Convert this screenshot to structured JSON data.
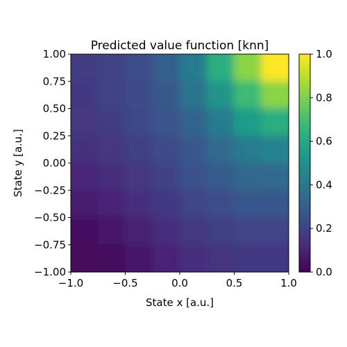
{
  "chart_data": {
    "type": "heatmap",
    "title": "Predicted value function [knn]",
    "xlabel": "State x [a.u.]",
    "ylabel": "State y [a.u.]",
    "xlim": [
      -1.0,
      1.0
    ],
    "ylim": [
      -1.0,
      1.0
    ],
    "x_ticks": [
      -1.0,
      -0.5,
      0.0,
      0.5,
      1.0
    ],
    "x_tick_labels": [
      "−1.0",
      "−0.5",
      "0.0",
      "0.5",
      "1.0"
    ],
    "y_ticks": [
      1.0,
      0.75,
      0.5,
      0.25,
      0.0,
      -0.25,
      -0.5,
      -0.75,
      -1.0
    ],
    "y_tick_labels": [
      "1.00",
      "0.75",
      "0.50",
      "0.25",
      "0.00",
      "−0.25",
      "−0.50",
      "−0.75",
      "−1.00"
    ],
    "colorbar": {
      "range": [
        0.0,
        1.0
      ],
      "ticks": [
        0.0,
        0.2,
        0.4,
        0.6,
        0.8,
        1.0
      ],
      "tick_labels": [
        "0.0",
        "0.2",
        "0.4",
        "0.6",
        "0.8",
        "1.0"
      ],
      "colormap": "viridis",
      "stops": [
        "#440154",
        "#482878",
        "#3e4989",
        "#31688e",
        "#26828e",
        "#1f9e89",
        "#35b779",
        "#6ece58",
        "#b5de2b",
        "#fde725"
      ]
    },
    "grid": false,
    "grid_rows": 8,
    "grid_cols": 8,
    "rows_top_to_bottom": [
      [
        0.18,
        0.2,
        0.24,
        0.3,
        0.42,
        0.62,
        0.82,
        1.0
      ],
      [
        0.17,
        0.2,
        0.23,
        0.28,
        0.38,
        0.52,
        0.68,
        0.82
      ],
      [
        0.16,
        0.18,
        0.22,
        0.26,
        0.32,
        0.42,
        0.55,
        0.62
      ],
      [
        0.14,
        0.16,
        0.19,
        0.23,
        0.28,
        0.34,
        0.42,
        0.45
      ],
      [
        0.11,
        0.13,
        0.16,
        0.2,
        0.25,
        0.29,
        0.33,
        0.34
      ],
      [
        0.08,
        0.1,
        0.13,
        0.17,
        0.21,
        0.24,
        0.27,
        0.27
      ],
      [
        0.04,
        0.06,
        0.09,
        0.13,
        0.16,
        0.19,
        0.21,
        0.21
      ],
      [
        0.02,
        0.03,
        0.06,
        0.1,
        0.13,
        0.15,
        0.17,
        0.17
      ]
    ]
  }
}
